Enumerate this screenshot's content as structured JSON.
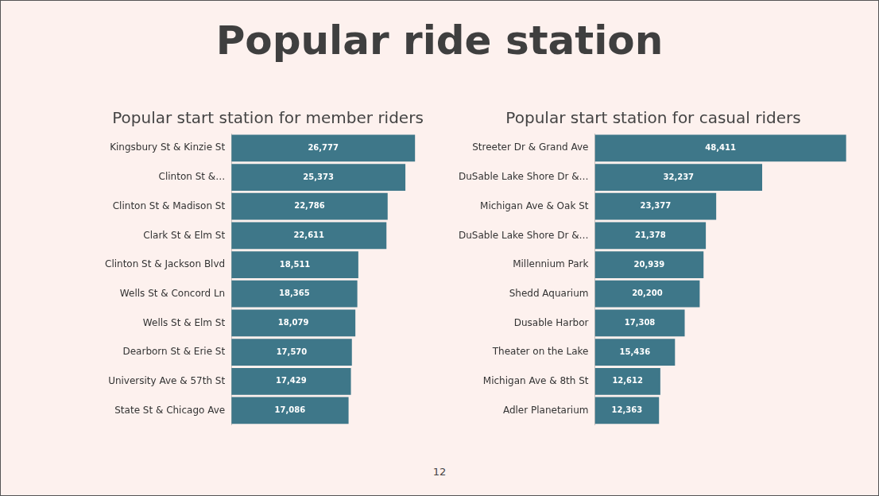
{
  "title": "Popular ride station",
  "page_number": 12,
  "chart_data": [
    {
      "type": "bar",
      "orientation": "horizontal",
      "title": "Popular start station for member riders",
      "categories": [
        "Kingsbury St & Kinzie St",
        "Clinton St &…",
        "Clinton St & Madison St",
        "Clark St & Elm St",
        "Clinton St & Jackson Blvd",
        "Wells St & Concord Ln",
        "Wells St & Elm St",
        "Dearborn St & Erie St",
        "University Ave & 57th St",
        "State St & Chicago Ave"
      ],
      "values": [
        26777,
        25373,
        22786,
        22611,
        18511,
        18365,
        18079,
        17570,
        17429,
        17086
      ],
      "value_labels": [
        "26,777",
        "25,373",
        "22,786",
        "22,611",
        "18,511",
        "18,365",
        "18,079",
        "17,570",
        "17,429",
        "17,086"
      ],
      "color": "#3e7789",
      "data_labels": true,
      "grid": false,
      "tick_labels": "y"
    },
    {
      "type": "bar",
      "orientation": "horizontal",
      "title": "Popular start station for casual riders",
      "categories": [
        "Streeter Dr & Grand Ave",
        "DuSable Lake Shore Dr &…",
        "Michigan Ave & Oak St",
        "DuSable Lake Shore Dr &…",
        "Millennium Park",
        "Shedd Aquarium",
        "Dusable Harbor",
        "Theater on the Lake",
        "Michigan Ave & 8th St",
        "Adler Planetarium"
      ],
      "values": [
        48411,
        32237,
        23377,
        21378,
        20939,
        20200,
        17308,
        15436,
        12612,
        12363
      ],
      "value_labels": [
        "48,411",
        "32,237",
        "23,377",
        "21,378",
        "20,939",
        "20,200",
        "17,308",
        "15,436",
        "12,612",
        "12,363"
      ],
      "color": "#3e7789",
      "data_labels": true,
      "grid": false,
      "tick_labels": "y"
    }
  ]
}
